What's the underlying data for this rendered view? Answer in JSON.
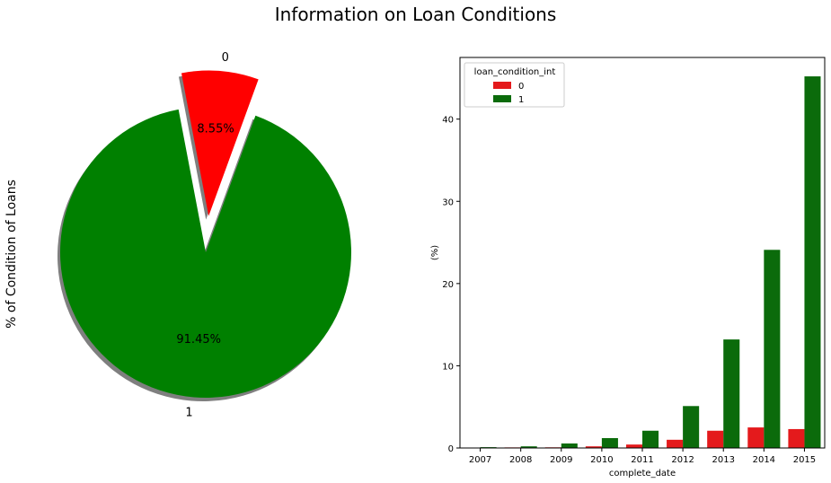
{
  "suptitle": "Information on Loan Conditions",
  "chart_data": [
    {
      "type": "pie",
      "ylabel": "% of Condition of Loans",
      "labels": [
        "0",
        "1"
      ],
      "values": [
        8.55,
        91.45
      ],
      "pct_labels": [
        "8.55%",
        "91.45%"
      ],
      "colors": [
        "#ff0000",
        "#008000"
      ],
      "explode": [
        0.25,
        0
      ],
      "startangle": 70,
      "shadow": true
    },
    {
      "type": "bar",
      "xlabel": "complete_date",
      "ylabel": "(%)",
      "categories": [
        "2007",
        "2008",
        "2009",
        "2010",
        "2011",
        "2012",
        "2013",
        "2014",
        "2015"
      ],
      "series": [
        {
          "name": "0",
          "color": "#e41a1c",
          "values": [
            0.02,
            0.07,
            0.08,
            0.2,
            0.42,
            1.0,
            2.1,
            2.5,
            2.3
          ]
        },
        {
          "name": "1",
          "color": "#0b6b0b",
          "values": [
            0.1,
            0.2,
            0.55,
            1.2,
            2.1,
            5.1,
            13.2,
            24.1,
            45.2
          ]
        }
      ],
      "yticks": [
        0,
        10,
        20,
        30,
        40
      ],
      "ylim": [
        0,
        47.5
      ],
      "legend_title": "loan_condition_int",
      "legend_position": "upper left",
      "grid": false
    }
  ]
}
